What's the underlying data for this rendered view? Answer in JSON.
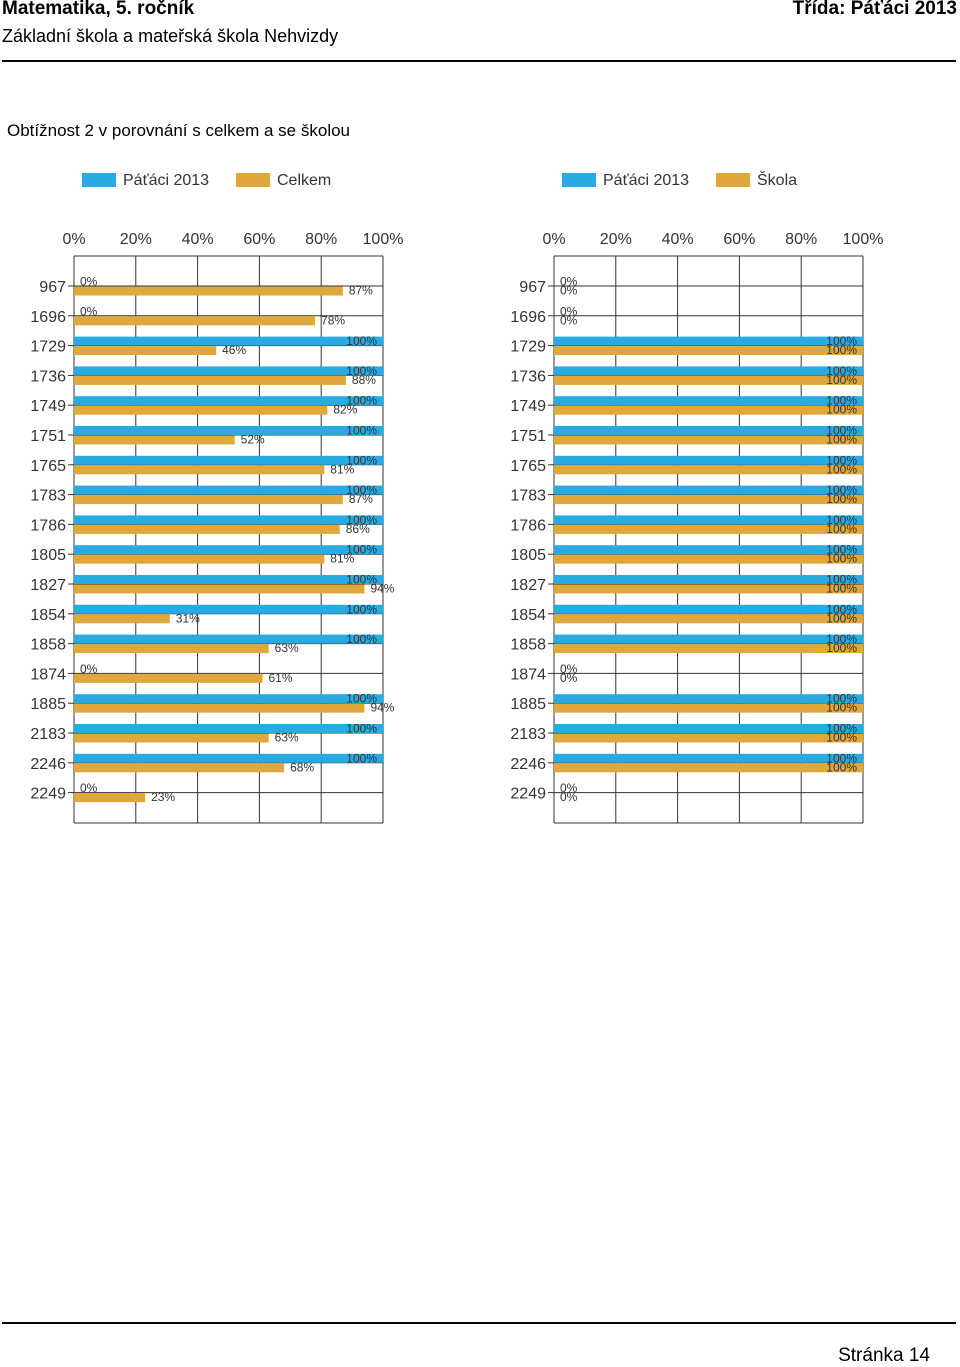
{
  "header": {
    "subject": "Matematika, 5. ročník",
    "class_label": "Třída: Páťáci 2013",
    "school": "Základní škola a mateřská škola Nehvizdy"
  },
  "section_title": "Obtížnost 2 v porovnání s celkem a se školou",
  "footer": {
    "page_label": "Stránka 14"
  },
  "colors": {
    "series_primary": "#29ABE2",
    "series_secondary": "#E0A83A"
  },
  "chart_data": [
    {
      "type": "bar",
      "orientation": "horizontal",
      "legend_position": "top",
      "categories": [
        "967",
        "1696",
        "1729",
        "1736",
        "1749",
        "1751",
        "1765",
        "1783",
        "1786",
        "1805",
        "1827",
        "1854",
        "1858",
        "1874",
        "1885",
        "2183",
        "2246",
        "2249"
      ],
      "xlim": [
        0,
        100
      ],
      "xticks": [
        "0%",
        "20%",
        "40%",
        "60%",
        "80%",
        "100%"
      ],
      "series": [
        {
          "name": "Páťáci 2013",
          "color": "#29ABE2",
          "values": [
            0,
            0,
            100,
            100,
            100,
            100,
            100,
            100,
            100,
            100,
            100,
            100,
            100,
            0,
            100,
            100,
            100,
            0
          ]
        },
        {
          "name": "Celkem",
          "color": "#E0A83A",
          "values": [
            87,
            78,
            46,
            88,
            82,
            52,
            81,
            87,
            86,
            81,
            94,
            31,
            63,
            61,
            94,
            63,
            68,
            23
          ]
        }
      ]
    },
    {
      "type": "bar",
      "orientation": "horizontal",
      "legend_position": "top",
      "categories": [
        "967",
        "1696",
        "1729",
        "1736",
        "1749",
        "1751",
        "1765",
        "1783",
        "1786",
        "1805",
        "1827",
        "1854",
        "1858",
        "1874",
        "1885",
        "2183",
        "2246",
        "2249"
      ],
      "xlim": [
        0,
        100
      ],
      "xticks": [
        "0%",
        "20%",
        "40%",
        "60%",
        "80%",
        "100%"
      ],
      "series": [
        {
          "name": "Páťáci 2013",
          "color": "#29ABE2",
          "values": [
            0,
            0,
            100,
            100,
            100,
            100,
            100,
            100,
            100,
            100,
            100,
            100,
            100,
            0,
            100,
            100,
            100,
            0
          ]
        },
        {
          "name": "Škola",
          "color": "#E0A83A",
          "values": [
            0,
            0,
            100,
            100,
            100,
            100,
            100,
            100,
            100,
            100,
            100,
            100,
            100,
            0,
            100,
            100,
            100,
            0
          ]
        }
      ]
    }
  ]
}
